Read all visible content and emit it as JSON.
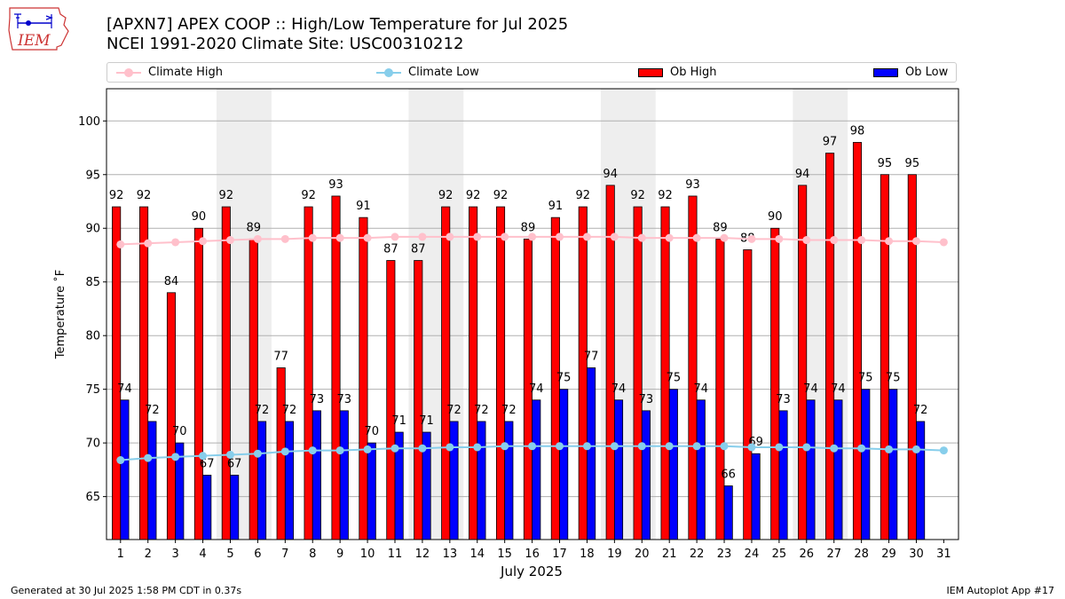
{
  "header": {
    "title_line1": "[APXN7] APEX COOP :: High/Low Temperature for Jul 2025",
    "title_line2": "NCEI 1991-2020 Climate Site: USC00310212",
    "logo_text": "IEM"
  },
  "footer": {
    "generated": "Generated at 30 Jul 2025 1:58 PM CDT in 0.37s",
    "app": "IEM Autoplot App #17"
  },
  "colors": {
    "ob_high": "#ff0000",
    "ob_low": "#0000ff",
    "climate_high": "#ffc0cb",
    "climate_low": "#87ceeb",
    "weekend_shade": "#eeeeee",
    "grid": "#b0b0b0"
  },
  "chart_data": {
    "type": "bar",
    "xlabel": "July 2025",
    "ylabel": "Temperature ˚F",
    "ylim": [
      61,
      103
    ],
    "yticks": [
      65,
      70,
      75,
      80,
      85,
      90,
      95,
      100
    ],
    "grid": "horizontal",
    "legend_position": "top",
    "legend": [
      "Climate High",
      "Climate Low",
      "Ob High",
      "Ob Low"
    ],
    "days": [
      1,
      2,
      3,
      4,
      5,
      6,
      7,
      8,
      9,
      10,
      11,
      12,
      13,
      14,
      15,
      16,
      17,
      18,
      19,
      20,
      21,
      22,
      23,
      24,
      25,
      26,
      27,
      28,
      29,
      30,
      31
    ],
    "shaded_days": [
      [
        5,
        6
      ],
      [
        12,
        13
      ],
      [
        19,
        20
      ],
      [
        26,
        27
      ]
    ],
    "series": [
      {
        "name": "Ob High",
        "kind": "bar",
        "values": [
          92,
          92,
          84,
          90,
          92,
          89,
          77,
          92,
          93,
          91,
          87,
          87,
          92,
          92,
          92,
          89,
          91,
          92,
          94,
          92,
          92,
          93,
          89,
          88,
          90,
          94,
          97,
          98,
          95,
          95
        ]
      },
      {
        "name": "Ob Low",
        "kind": "bar",
        "values": [
          74,
          72,
          70,
          67,
          67,
          72,
          72,
          73,
          73,
          70,
          71,
          71,
          72,
          72,
          72,
          74,
          75,
          77,
          74,
          73,
          75,
          74,
          66,
          69,
          73,
          74,
          74,
          75,
          75,
          72
        ]
      },
      {
        "name": "Climate High",
        "kind": "line",
        "values": [
          88.5,
          88.6,
          88.7,
          88.8,
          88.9,
          89.0,
          89.0,
          89.1,
          89.1,
          89.1,
          89.2,
          89.2,
          89.2,
          89.2,
          89.2,
          89.2,
          89.2,
          89.2,
          89.2,
          89.1,
          89.1,
          89.1,
          89.1,
          89.0,
          89.0,
          88.9,
          88.9,
          88.9,
          88.8,
          88.8,
          88.7
        ]
      },
      {
        "name": "Climate Low",
        "kind": "line",
        "values": [
          68.4,
          68.6,
          68.7,
          68.8,
          68.9,
          69.0,
          69.2,
          69.3,
          69.3,
          69.4,
          69.5,
          69.5,
          69.6,
          69.6,
          69.7,
          69.7,
          69.7,
          69.7,
          69.7,
          69.7,
          69.7,
          69.7,
          69.7,
          69.6,
          69.6,
          69.6,
          69.5,
          69.5,
          69.4,
          69.4,
          69.3
        ]
      }
    ]
  }
}
